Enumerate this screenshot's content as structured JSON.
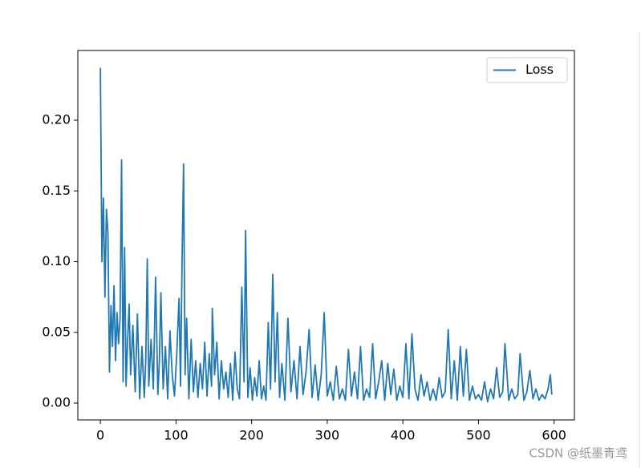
{
  "chart_data": {
    "type": "line",
    "x": [
      0,
      2,
      4,
      6,
      8,
      10,
      12,
      14,
      16,
      18,
      20,
      22,
      24,
      26,
      28,
      30,
      32,
      34,
      36,
      38,
      40,
      43,
      46,
      49,
      52,
      55,
      58,
      60,
      62,
      64,
      67,
      70,
      73,
      76,
      78,
      80,
      83,
      86,
      89,
      92,
      95,
      98,
      101,
      104,
      106,
      108,
      110,
      112,
      114,
      117,
      120,
      123,
      126,
      129,
      132,
      135,
      138,
      141,
      144,
      147,
      148,
      151,
      154,
      157,
      160,
      163,
      166,
      169,
      172,
      175,
      178,
      181,
      184,
      187,
      190,
      192,
      195,
      198,
      201,
      204,
      207,
      210,
      213,
      216,
      219,
      222,
      225,
      228,
      231,
      234,
      237,
      240,
      244,
      248,
      252,
      256,
      260,
      264,
      268,
      272,
      276,
      280,
      284,
      288,
      292,
      296,
      300,
      304,
      308,
      312,
      316,
      320,
      324,
      328,
      332,
      336,
      340,
      344,
      348,
      352,
      356,
      360,
      364,
      368,
      372,
      376,
      380,
      384,
      388,
      392,
      396,
      400,
      404,
      408,
      412,
      416,
      420,
      424,
      428,
      432,
      436,
      440,
      444,
      448,
      452,
      456,
      460,
      464,
      468,
      472,
      476,
      480,
      484,
      488,
      492,
      496,
      500,
      504,
      508,
      512,
      516,
      520,
      524,
      528,
      532,
      535,
      540,
      544,
      548,
      552,
      555,
      560,
      564,
      568,
      572,
      576,
      580,
      584,
      588,
      592,
      595,
      597
    ],
    "series": [
      {
        "name": "Loss",
        "color": "#1f77b4",
        "values": [
          0.237,
          0.1,
          0.145,
          0.075,
          0.137,
          0.12,
          0.022,
          0.069,
          0.04,
          0.083,
          0.03,
          0.064,
          0.042,
          0.06,
          0.172,
          0.015,
          0.11,
          0.012,
          0.045,
          0.07,
          0.02,
          0.055,
          0.008,
          0.063,
          0.003,
          0.04,
          0.004,
          0.03,
          0.102,
          0.012,
          0.045,
          0.01,
          0.089,
          0.006,
          0.03,
          0.078,
          0.01,
          0.04,
          0.003,
          0.051,
          0.02,
          0.005,
          0.035,
          0.074,
          0.012,
          0.1,
          0.169,
          0.02,
          0.06,
          0.003,
          0.045,
          0.008,
          0.03,
          0.004,
          0.028,
          0.01,
          0.043,
          0.005,
          0.035,
          0.012,
          0.067,
          0.02,
          0.043,
          0.003,
          0.03,
          0.01,
          0.022,
          0.004,
          0.028,
          0.002,
          0.036,
          0.01,
          0.003,
          0.082,
          0.015,
          0.122,
          0.004,
          0.025,
          0.002,
          0.018,
          0.005,
          0.03,
          0.003,
          0.012,
          0.002,
          0.057,
          0.01,
          0.091,
          0.015,
          0.064,
          0.004,
          0.028,
          0.002,
          0.06,
          0.008,
          0.03,
          0.003,
          0.04,
          0.006,
          0.022,
          0.052,
          0.004,
          0.027,
          0.002,
          0.02,
          0.064,
          0.005,
          0.015,
          0.002,
          0.026,
          0.003,
          0.01,
          0.002,
          0.038,
          0.005,
          0.022,
          0.003,
          0.04,
          0.002,
          0.01,
          0.004,
          0.042,
          0.003,
          0.015,
          0.03,
          0.002,
          0.028,
          0.006,
          0.024,
          0.002,
          0.012,
          0.004,
          0.042,
          0.003,
          0.049,
          0.01,
          0.002,
          0.02,
          0.005,
          0.015,
          0.002,
          0.01,
          0.002,
          0.018,
          0.004,
          0.008,
          0.052,
          0.003,
          0.03,
          0.002,
          0.04,
          0.005,
          0.038,
          0.002,
          0.012,
          0.003,
          0.006,
          0.002,
          0.015,
          0.001,
          0.01,
          0.003,
          0.025,
          0.004,
          0.008,
          0.042,
          0.002,
          0.01,
          0.003,
          0.006,
          0.035,
          0.002,
          0.008,
          0.023,
          0.003,
          0.01,
          0.002,
          0.006,
          0.003,
          0.01,
          0.02,
          0.006
        ]
      }
    ],
    "xlim": [
      -29.85,
      626.85
    ],
    "xticks": [
      0,
      100,
      200,
      300,
      400,
      500,
      600
    ],
    "ylim": [
      -0.0119,
      0.2493
    ],
    "yticks": [
      {
        "value": 0,
        "label": "0.00"
      },
      {
        "value": 0.05,
        "label": "0.05"
      },
      {
        "value": 0.1,
        "label": "0.10"
      },
      {
        "value": 0.15,
        "label": "0.15"
      },
      {
        "value": 0.2,
        "label": "0.20"
      }
    ],
    "legend": "upper right"
  },
  "watermark": "CSDN @纸墨青鸢"
}
